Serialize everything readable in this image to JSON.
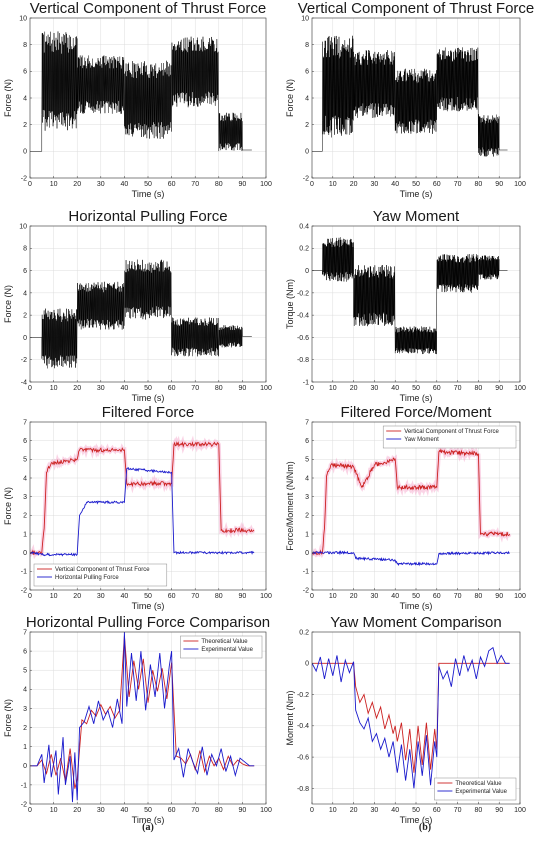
{
  "subfig_labels": [
    "(a)",
    "(b)"
  ],
  "chart_data": [
    {
      "id": "a1",
      "type": "line",
      "title": "Vertical Component of Thrust Force",
      "xlabel": "Time (s)",
      "ylabel": "Force (N)",
      "xlim": [
        0,
        100
      ],
      "ylim": [
        -2,
        10
      ],
      "xticks": [
        0,
        10,
        20,
        30,
        40,
        50,
        60,
        70,
        80,
        90,
        100
      ],
      "yticks": [
        -2,
        0,
        2,
        4,
        6,
        8,
        10
      ],
      "grid": true,
      "series": [
        {
          "color": "#000000",
          "style": "noisy-band",
          "segments": [
            {
              "x": [
                0,
                5
              ],
              "lo": 0,
              "hi": 0
            },
            {
              "x": [
                5,
                20
              ],
              "lo": 1.5,
              "hi": 9.0
            },
            {
              "x": [
                20,
                40
              ],
              "lo": 2.8,
              "hi": 7.2
            },
            {
              "x": [
                40,
                60
              ],
              "lo": 0.9,
              "hi": 6.8
            },
            {
              "x": [
                60,
                80
              ],
              "lo": 3.3,
              "hi": 8.6
            },
            {
              "x": [
                80,
                90
              ],
              "lo": 0.0,
              "hi": 2.9
            },
            {
              "x": [
                90,
                94
              ],
              "lo": 0.1,
              "hi": 0.1
            }
          ]
        }
      ]
    },
    {
      "id": "b1",
      "type": "line",
      "title": "Vertical Component of Thrust Force",
      "xlabel": "Time (s)",
      "ylabel": "Force (N)",
      "xlim": [
        0,
        100
      ],
      "ylim": [
        -2,
        10
      ],
      "xticks": [
        0,
        10,
        20,
        30,
        40,
        50,
        60,
        70,
        80,
        90,
        100
      ],
      "yticks": [
        -2,
        0,
        2,
        4,
        6,
        8,
        10
      ],
      "grid": true,
      "series": [
        {
          "color": "#000000",
          "style": "noisy-band",
          "segments": [
            {
              "x": [
                0,
                5
              ],
              "lo": 0,
              "hi": 0
            },
            {
              "x": [
                5,
                20
              ],
              "lo": 1.0,
              "hi": 8.7
            },
            {
              "x": [
                20,
                40
              ],
              "lo": 2.5,
              "hi": 7.6
            },
            {
              "x": [
                40,
                60
              ],
              "lo": 1.3,
              "hi": 6.2
            },
            {
              "x": [
                60,
                80
              ],
              "lo": 3.0,
              "hi": 7.8
            },
            {
              "x": [
                80,
                90
              ],
              "lo": -0.4,
              "hi": 2.8
            },
            {
              "x": [
                90,
                94
              ],
              "lo": 0.1,
              "hi": 0.1
            }
          ]
        }
      ]
    },
    {
      "id": "a2",
      "type": "line",
      "title": "Horizontal Pulling Force",
      "xlabel": "Time (s)",
      "ylabel": "Force (N)",
      "xlim": [
        0,
        100
      ],
      "ylim": [
        -4,
        10
      ],
      "xticks": [
        0,
        10,
        20,
        30,
        40,
        50,
        60,
        70,
        80,
        90,
        100
      ],
      "yticks": [
        -4,
        -2,
        0,
        2,
        4,
        6,
        8,
        10
      ],
      "grid": true,
      "series": [
        {
          "color": "#000000",
          "style": "noisy-band",
          "segments": [
            {
              "x": [
                0,
                5
              ],
              "lo": 0,
              "hi": 0
            },
            {
              "x": [
                5,
                20
              ],
              "lo": -2.8,
              "hi": 2.6
            },
            {
              "x": [
                20,
                40
              ],
              "lo": 0.7,
              "hi": 5.0
            },
            {
              "x": [
                40,
                60
              ],
              "lo": 1.6,
              "hi": 7.0
            },
            {
              "x": [
                60,
                80
              ],
              "lo": -1.7,
              "hi": 1.8
            },
            {
              "x": [
                80,
                90
              ],
              "lo": -0.9,
              "hi": 1.1
            },
            {
              "x": [
                90,
                94
              ],
              "lo": 0.1,
              "hi": 0.1
            }
          ]
        }
      ]
    },
    {
      "id": "b2",
      "type": "line",
      "title": "Yaw Moment",
      "xlabel": "Time (s)",
      "ylabel": "Torque (Nm)",
      "xlim": [
        0,
        100
      ],
      "ylim": [
        -1,
        0.4
      ],
      "xticks": [
        0,
        10,
        20,
        30,
        40,
        50,
        60,
        70,
        80,
        90,
        100
      ],
      "yticks": [
        -1,
        -0.8,
        -0.6,
        -0.4,
        -0.2,
        0,
        0.2,
        0.4
      ],
      "grid": true,
      "series": [
        {
          "color": "#000000",
          "style": "noisy-band",
          "segments": [
            {
              "x": [
                0,
                5
              ],
              "lo": 0,
              "hi": 0
            },
            {
              "x": [
                5,
                20
              ],
              "lo": -0.1,
              "hi": 0.3
            },
            {
              "x": [
                20,
                40
              ],
              "lo": -0.5,
              "hi": 0.05
            },
            {
              "x": [
                40,
                60
              ],
              "lo": -0.75,
              "hi": -0.5
            },
            {
              "x": [
                60,
                80
              ],
              "lo": -0.2,
              "hi": 0.15
            },
            {
              "x": [
                80,
                90
              ],
              "lo": -0.08,
              "hi": 0.14
            },
            {
              "x": [
                90,
                94
              ],
              "lo": 0.0,
              "hi": 0.0
            }
          ]
        }
      ]
    },
    {
      "id": "a3",
      "type": "line",
      "title": "Filtered Force",
      "xlabel": "Time (s)",
      "ylabel": "Force (N)",
      "xlim": [
        0,
        100
      ],
      "ylim": [
        -2,
        7
      ],
      "xticks": [
        0,
        10,
        20,
        30,
        40,
        50,
        60,
        70,
        80,
        90,
        100
      ],
      "yticks": [
        -2,
        -1,
        0,
        1,
        2,
        3,
        4,
        5,
        6,
        7
      ],
      "grid": true,
      "legend": "bottom-left",
      "series": [
        {
          "name": "Vertical Component of Thrust Force",
          "color": "#cc2222",
          "x": [
            0,
            5,
            6,
            7,
            9,
            20,
            21,
            40,
            41,
            60,
            61,
            80,
            81,
            95
          ],
          "y": [
            0,
            0,
            1.3,
            4.3,
            4.8,
            5.0,
            5.5,
            5.5,
            3.7,
            3.7,
            5.8,
            5.8,
            1.2,
            1.2
          ]
        },
        {
          "name": "Horizontal Pulling Force",
          "color": "#1a1acc",
          "x": [
            0,
            5,
            20,
            21,
            24,
            40,
            41,
            60,
            61,
            95
          ],
          "y": [
            0,
            -0.1,
            -0.1,
            2.0,
            2.7,
            2.7,
            4.5,
            4.3,
            0.0,
            0.0
          ]
        }
      ]
    },
    {
      "id": "b3",
      "type": "line",
      "title": "Filtered Force/Moment",
      "xlabel": "Time (s)",
      "ylabel": "Force/Moment (N/Nm)",
      "xlim": [
        0,
        100
      ],
      "ylim": [
        -2,
        7
      ],
      "xticks": [
        0,
        10,
        20,
        30,
        40,
        50,
        60,
        70,
        80,
        90,
        100
      ],
      "yticks": [
        -2,
        -1,
        0,
        1,
        2,
        3,
        4,
        5,
        6,
        7
      ],
      "grid": true,
      "legend": "top-right",
      "series": [
        {
          "name": "Vertical Component of Thrust Force",
          "color": "#cc2222",
          "x": [
            0,
            5,
            6,
            7,
            9,
            20,
            24,
            30,
            40,
            41,
            60,
            61,
            80,
            81,
            95
          ],
          "y": [
            0,
            0,
            1.3,
            4.1,
            4.7,
            4.6,
            3.5,
            4.7,
            5.0,
            3.5,
            3.5,
            5.4,
            5.3,
            1.0,
            1.0
          ]
        },
        {
          "name": "Yaw Moment",
          "color": "#1a1acc",
          "x": [
            0,
            20,
            21,
            40,
            41,
            60,
            61,
            95
          ],
          "y": [
            0,
            0,
            -0.3,
            -0.4,
            -0.6,
            -0.6,
            -0.05,
            0.0
          ]
        }
      ]
    },
    {
      "id": "a4",
      "type": "line",
      "title": "Horizontal Pulling Force Comparison",
      "xlabel": "Time (s)",
      "ylabel": "Force (N)",
      "xlim": [
        0,
        100
      ],
      "ylim": [
        -2,
        7
      ],
      "xticks": [
        0,
        10,
        20,
        30,
        40,
        50,
        60,
        70,
        80,
        90,
        100
      ],
      "yticks": [
        -2,
        -1,
        0,
        1,
        2,
        3,
        4,
        5,
        6,
        7
      ],
      "grid": true,
      "legend": "top-right",
      "series": [
        {
          "name": "Theoretical Value",
          "color": "#cc2222",
          "x": [
            0,
            3,
            5,
            7,
            9,
            11,
            13,
            15,
            17,
            19,
            20,
            22,
            24,
            26,
            28,
            30,
            32,
            34,
            36,
            38,
            40,
            42,
            44,
            46,
            48,
            50,
            52,
            54,
            56,
            58,
            60,
            62,
            64,
            66,
            68,
            70,
            72,
            74,
            76,
            78,
            80,
            82,
            84,
            86,
            88,
            90,
            92,
            95
          ],
          "y": [
            0,
            0,
            0.3,
            -0.4,
            0.6,
            -0.5,
            0.4,
            -0.8,
            0.9,
            -1.2,
            -0.7,
            2.4,
            2.2,
            2.9,
            2.6,
            3.2,
            2.7,
            3.1,
            2.5,
            2.9,
            6.8,
            3.6,
            5.5,
            4.0,
            5.6,
            3.3,
            5.0,
            3.9,
            5.1,
            3.5,
            5.4,
            0.5,
            0.4,
            0.1,
            0.6,
            -0.2,
            0.8,
            -0.3,
            0.5,
            0.0,
            0.4,
            -0.2,
            0.5,
            0.0,
            0.3,
            0.1,
            0.0,
            0.0
          ]
        },
        {
          "name": "Experimental Value",
          "color": "#1a1acc",
          "x": [
            0,
            3,
            5,
            6,
            8,
            9,
            11,
            12,
            14,
            15,
            17,
            18,
            19,
            20,
            21,
            23,
            25,
            27,
            29,
            31,
            33,
            35,
            37,
            39,
            40,
            41,
            43,
            45,
            47,
            49,
            51,
            53,
            55,
            57,
            59,
            60,
            61,
            63,
            65,
            67,
            69,
            71,
            73,
            75,
            77,
            79,
            81,
            83,
            85,
            87,
            89,
            91,
            93,
            95
          ],
          "y": [
            0,
            0,
            0.6,
            -0.9,
            1.1,
            -0.6,
            0.8,
            -1.5,
            1.5,
            -1.0,
            0.5,
            -1.9,
            0.7,
            -1.8,
            2.0,
            2.3,
            3.1,
            2.2,
            3.4,
            2.4,
            2.9,
            2.0,
            3.5,
            2.2,
            7.0,
            3.1,
            5.9,
            3.4,
            6.0,
            2.9,
            5.3,
            3.6,
            5.9,
            3.0,
            5.2,
            6.0,
            0.3,
            0.9,
            -0.6,
            0.9,
            0.2,
            -0.4,
            1.0,
            -0.5,
            0.6,
            0.0,
            0.9,
            -0.3,
            0.5,
            -0.5,
            0.4,
            0.2,
            0.0,
            0.0
          ]
        }
      ]
    },
    {
      "id": "b4",
      "type": "line",
      "title": "Yaw Moment Comparison",
      "xlabel": "Time (s)",
      "ylabel": "Moment (Nm)",
      "xlim": [
        0,
        100
      ],
      "ylim": [
        -0.9,
        0.2
      ],
      "xticks": [
        0,
        10,
        20,
        30,
        40,
        50,
        60,
        70,
        80,
        90,
        100
      ],
      "yticks": [
        -0.8,
        -0.6,
        -0.4,
        -0.2,
        0,
        0.2
      ],
      "grid": true,
      "legend": "bottom-right",
      "series": [
        {
          "name": "Theoretical Value",
          "color": "#cc2222",
          "x": [
            0,
            20,
            21,
            23,
            25,
            27,
            29,
            31,
            33,
            35,
            37,
            39,
            40,
            41,
            43,
            45,
            47,
            49,
            51,
            53,
            55,
            57,
            59,
            60,
            61,
            95
          ],
          "y": [
            0,
            0,
            -0.15,
            -0.25,
            -0.2,
            -0.32,
            -0.25,
            -0.35,
            -0.28,
            -0.42,
            -0.33,
            -0.45,
            -0.4,
            -0.5,
            -0.38,
            -0.62,
            -0.42,
            -0.7,
            -0.4,
            -0.65,
            -0.38,
            -0.68,
            -0.42,
            -0.55,
            0,
            0
          ]
        },
        {
          "name": "Experimental Value",
          "color": "#1a1acc",
          "x": [
            0,
            2,
            4,
            6,
            8,
            10,
            12,
            14,
            16,
            18,
            20,
            21,
            23,
            25,
            27,
            29,
            31,
            33,
            35,
            37,
            39,
            41,
            43,
            45,
            47,
            49,
            51,
            53,
            55,
            57,
            59,
            60,
            61,
            63,
            65,
            67,
            69,
            71,
            73,
            75,
            77,
            79,
            81,
            83,
            85,
            87,
            89,
            91,
            93,
            95
          ],
          "y": [
            0,
            -0.05,
            0.04,
            -0.1,
            0.03,
            -0.08,
            0.05,
            -0.12,
            0.02,
            -0.06,
            0.01,
            -0.3,
            -0.38,
            -0.42,
            -0.35,
            -0.5,
            -0.45,
            -0.55,
            -0.48,
            -0.6,
            -0.5,
            -0.7,
            -0.52,
            -0.75,
            -0.55,
            -0.8,
            -0.5,
            -0.72,
            -0.46,
            -0.78,
            -0.5,
            -0.6,
            -0.02,
            -0.1,
            -0.05,
            -0.15,
            0.03,
            -0.08,
            0.05,
            -0.05,
            0.02,
            -0.1,
            0.04,
            -0.02,
            0.08,
            0.1,
            0.0,
            0.05,
            0.0,
            0.0
          ]
        }
      ]
    }
  ]
}
